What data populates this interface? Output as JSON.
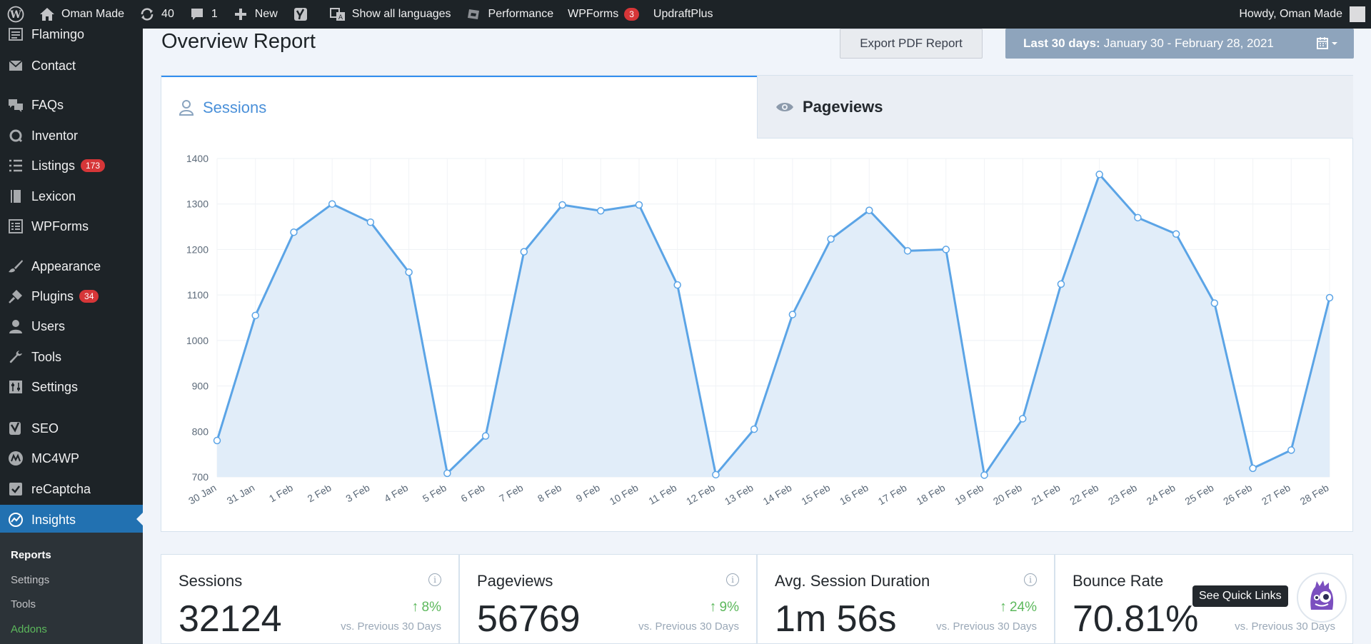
{
  "adminbar": {
    "site_name": "Oman Made",
    "updates_count": "40",
    "comments_count": "1",
    "new_label": "New",
    "languages_label": "Show all languages",
    "performance_label": "Performance",
    "wpforms_label": "WPForms",
    "wpforms_badge": "3",
    "updraft_label": "UpdraftPlus",
    "howdy": "Howdy, Oman Made"
  },
  "sidebar": {
    "items": [
      {
        "label": "Flamingo",
        "icon": "flamingo-icon"
      },
      {
        "label": "Contact",
        "icon": "mail-icon"
      },
      {
        "label": "FAQs",
        "icon": "comments-icon"
      },
      {
        "label": "Inventor",
        "icon": "inventor-icon"
      },
      {
        "label": "Listings",
        "icon": "list-icon",
        "badge": "173"
      },
      {
        "label": "Lexicon",
        "icon": "book-icon"
      },
      {
        "label": "WPForms",
        "icon": "form-icon"
      },
      {
        "label": "Appearance",
        "icon": "paintbrush-icon"
      },
      {
        "label": "Plugins",
        "icon": "plugin-icon",
        "badge": "34"
      },
      {
        "label": "Users",
        "icon": "user-icon"
      },
      {
        "label": "Tools",
        "icon": "wrench-icon"
      },
      {
        "label": "Settings",
        "icon": "settings-icon"
      },
      {
        "label": "SEO",
        "icon": "yoast-icon"
      },
      {
        "label": "MC4WP",
        "icon": "mc4wp-icon"
      },
      {
        "label": "reCaptcha",
        "icon": "checkbox-icon"
      },
      {
        "label": "Insights",
        "icon": "insights-icon"
      }
    ],
    "submenu": [
      "Reports",
      "Settings",
      "Tools",
      "Addons"
    ]
  },
  "header": {
    "title": "Overview Report",
    "export_label": "Export PDF Report",
    "date_prefix": "Last 30 days:",
    "date_range": "January 30 - February 28, 2021"
  },
  "tabs": {
    "sessions": "Sessions",
    "pageviews": "Pageviews"
  },
  "chart_data": {
    "type": "line",
    "categories": [
      "30 Jan",
      "31 Jan",
      "1 Feb",
      "2 Feb",
      "3 Feb",
      "4 Feb",
      "5 Feb",
      "6 Feb",
      "7 Feb",
      "8 Feb",
      "9 Feb",
      "10 Feb",
      "11 Feb",
      "12 Feb",
      "13 Feb",
      "14 Feb",
      "15 Feb",
      "16 Feb",
      "17 Feb",
      "18 Feb",
      "19 Feb",
      "20 Feb",
      "21 Feb",
      "22 Feb",
      "23 Feb",
      "24 Feb",
      "25 Feb",
      "26 Feb",
      "27 Feb",
      "28 Feb"
    ],
    "series": [
      {
        "values": [
          780,
          1055,
          1238,
          1300,
          1260,
          1150,
          708,
          790,
          1195,
          1298,
          1285,
          1298,
          1122,
          705,
          805,
          1057,
          1223,
          1286,
          1197,
          1200,
          704,
          828,
          1124,
          1365,
          1270,
          1234,
          1082,
          719,
          759,
          1094
        ]
      }
    ],
    "ylim": [
      700,
      1400
    ],
    "yticks": [
      700,
      800,
      900,
      1000,
      1100,
      1200,
      1300,
      1400
    ],
    "grid": true,
    "color": "#5ba4e6",
    "fill": "#e1edf9"
  },
  "stats": [
    {
      "title": "Sessions",
      "value": "32124",
      "change": "8%",
      "vs": "vs. Previous 30 Days"
    },
    {
      "title": "Pageviews",
      "value": "56769",
      "change": "9%",
      "vs": "vs. Previous 30 Days"
    },
    {
      "title": "Avg. Session Duration",
      "value": "1m 56s",
      "change": "24%",
      "vs": "vs. Previous 30 Days"
    },
    {
      "title": "Bounce Rate",
      "value": "70.81%",
      "change": "",
      "vs": "vs. Previous 30 Days"
    }
  ],
  "quick_links_label": "See Quick Links"
}
